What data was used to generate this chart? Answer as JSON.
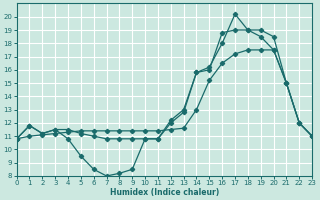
{
  "xlabel": "Humidex (Indice chaleur)",
  "background_color": "#cce8e0",
  "grid_color": "#ffffff",
  "line_color": "#1a6b6b",
  "x_values": [
    0,
    1,
    2,
    3,
    4,
    5,
    6,
    7,
    8,
    9,
    10,
    11,
    12,
    13,
    14,
    15,
    16,
    17,
    18,
    19,
    20,
    21,
    22,
    23
  ],
  "series1": [
    10.8,
    11.8,
    11.2,
    11.5,
    11.5,
    11.2,
    11.0,
    10.8,
    10.8,
    10.8,
    10.8,
    10.8,
    12.2,
    13.0,
    15.8,
    16.2,
    18.0,
    20.2,
    19.0,
    18.5,
    17.5,
    15.0,
    12.0,
    11.0
  ],
  "series2": [
    10.8,
    11.8,
    11.2,
    11.5,
    10.8,
    9.5,
    8.5,
    8.0,
    8.2,
    8.5,
    10.8,
    10.8,
    12.0,
    12.8,
    15.8,
    16.0,
    18.8,
    19.0,
    19.0,
    19.0,
    18.5,
    15.0,
    12.0,
    11.0
  ],
  "series3": [
    10.8,
    11.0,
    11.1,
    11.2,
    11.3,
    11.4,
    11.4,
    11.4,
    11.4,
    11.4,
    11.4,
    11.4,
    11.5,
    11.6,
    13.0,
    15.2,
    16.5,
    17.2,
    17.5,
    17.5,
    17.5,
    15.0,
    12.0,
    11.0
  ],
  "ylim": [
    8,
    21
  ],
  "xlim": [
    0,
    23
  ],
  "yticks": [
    8,
    9,
    10,
    11,
    12,
    13,
    14,
    15,
    16,
    17,
    18,
    19,
    20
  ],
  "xticks": [
    0,
    1,
    2,
    3,
    4,
    5,
    6,
    7,
    8,
    9,
    10,
    11,
    12,
    13,
    14,
    15,
    16,
    17,
    18,
    19,
    20,
    21,
    22,
    23
  ]
}
